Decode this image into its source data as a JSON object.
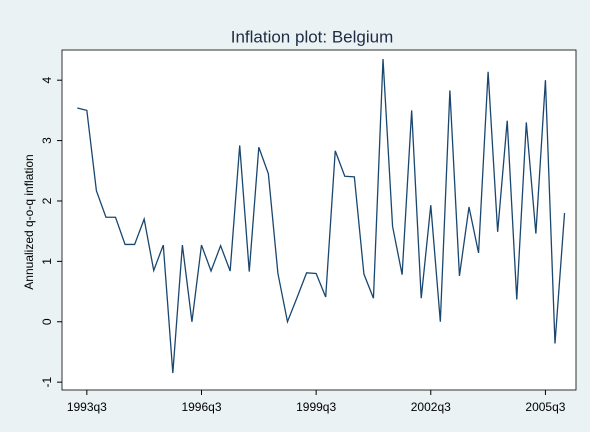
{
  "chart_data": {
    "type": "line",
    "title": "Inflation plot: Belgium",
    "y_label": "Annualized q-o-q inflation",
    "x": [
      133,
      134,
      135,
      136,
      137,
      138,
      139,
      140,
      141,
      142,
      143,
      144,
      145,
      146,
      147,
      148,
      149,
      150,
      151,
      152,
      153,
      154,
      155,
      156,
      157,
      158,
      159,
      160,
      161,
      162,
      163,
      164,
      165,
      166,
      167,
      168,
      169,
      170,
      171,
      172,
      173,
      174,
      175,
      176,
      177,
      178,
      179,
      180,
      181,
      182,
      183,
      184
    ],
    "series": [
      {
        "name": "inflation",
        "color": "#1a476f",
        "values": [
          3.54,
          3.5,
          2.17,
          1.73,
          1.73,
          1.28,
          1.28,
          1.7,
          0.85,
          1.27,
          -0.85,
          1.27,
          0.0,
          1.27,
          0.84,
          1.26,
          0.84,
          2.92,
          0.83,
          2.89,
          2.45,
          0.8,
          0.0,
          0.4,
          0.81,
          0.8,
          0.41,
          2.83,
          2.41,
          2.4,
          0.79,
          0.39,
          4.35,
          1.58,
          0.78,
          3.5,
          0.39,
          1.93,
          0.0,
          3.83,
          0.76,
          1.9,
          1.14,
          4.14,
          1.49,
          3.33,
          0.37,
          3.3,
          1.46,
          4.0,
          -0.36,
          1.8
        ]
      }
    ],
    "xlim": [
      131.4,
      185.2
    ],
    "xticks": [
      {
        "value": 134,
        "label": "1993q3"
      },
      {
        "value": 146,
        "label": "1996q3"
      },
      {
        "value": 158,
        "label": "1999q3"
      },
      {
        "value": 170,
        "label": "2002q3"
      },
      {
        "value": 182,
        "label": "2005q3"
      }
    ],
    "ylim": [
      -1.13,
      4.5
    ],
    "yticks": [
      -1,
      0,
      1,
      2,
      3,
      4
    ],
    "grid": false
  }
}
